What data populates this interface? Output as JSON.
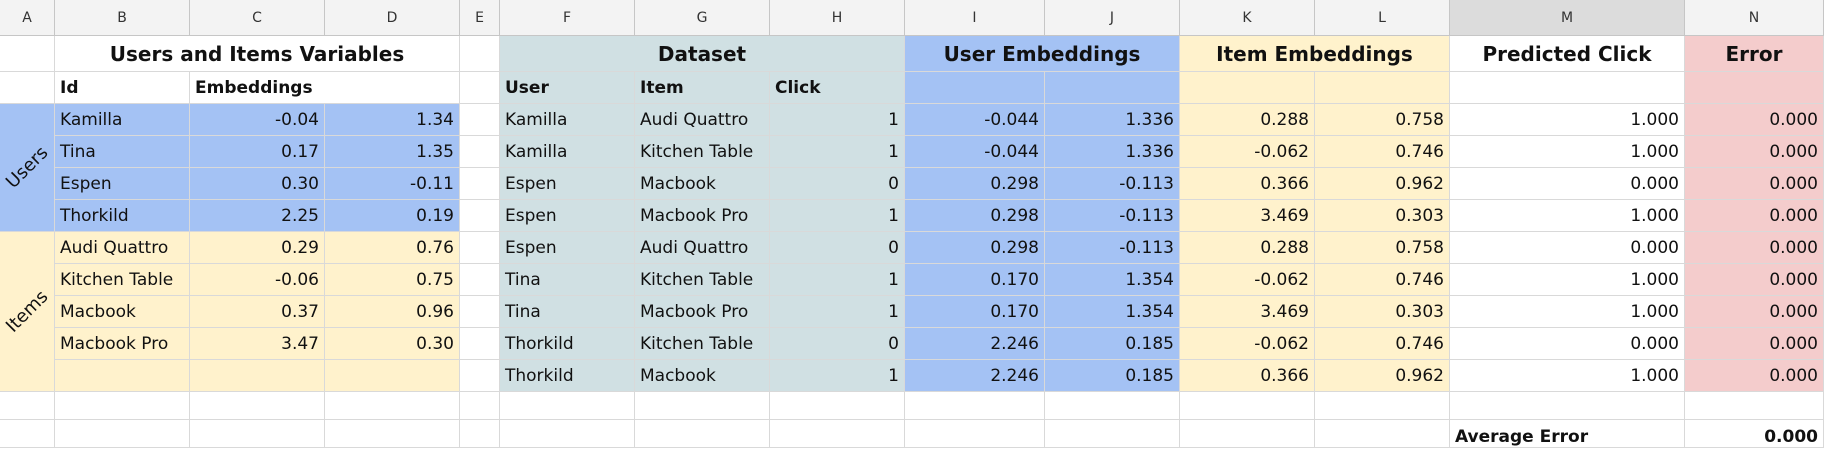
{
  "column_letters": [
    "A",
    "B",
    "C",
    "D",
    "E",
    "F",
    "G",
    "H",
    "I",
    "J",
    "K",
    "L",
    "M",
    "N"
  ],
  "selected_column": "M",
  "titles": {
    "users_items": "Users and Items Variables",
    "dataset": "Dataset",
    "user_embeddings": "User Embeddings",
    "item_embeddings": "Item Embeddings",
    "predicted_click": "Predicted Click",
    "error": "Error"
  },
  "headers": {
    "id": "Id",
    "embeddings": "Embeddings",
    "user": "User",
    "item": "Item",
    "click": "Click"
  },
  "group_labels": {
    "users": "Users",
    "items": "Items"
  },
  "variables": [
    [
      "Kamilla",
      "-0.04",
      "1.34"
    ],
    [
      "Tina",
      "0.17",
      "1.35"
    ],
    [
      "Espen",
      "0.30",
      "-0.11"
    ],
    [
      "Thorkild",
      "2.25",
      "0.19"
    ],
    [
      "Audi Quattro",
      "0.29",
      "0.76"
    ],
    [
      "Kitchen Table",
      "-0.06",
      "0.75"
    ],
    [
      "Macbook",
      "0.37",
      "0.96"
    ],
    [
      "Macbook Pro",
      "3.47",
      "0.30"
    ]
  ],
  "dataset": [
    [
      "Kamilla",
      "Audi Quattro",
      "1",
      "-0.044",
      "1.336",
      "0.288",
      "0.758",
      "1.000",
      "0.000"
    ],
    [
      "Kamilla",
      "Kitchen Table",
      "1",
      "-0.044",
      "1.336",
      "-0.062",
      "0.746",
      "1.000",
      "0.000"
    ],
    [
      "Espen",
      "Macbook",
      "0",
      "0.298",
      "-0.113",
      "0.366",
      "0.962",
      "0.000",
      "0.000"
    ],
    [
      "Espen",
      "Macbook Pro",
      "1",
      "0.298",
      "-0.113",
      "3.469",
      "0.303",
      "1.000",
      "0.000"
    ],
    [
      "Espen",
      "Audi Quattro",
      "0",
      "0.298",
      "-0.113",
      "0.288",
      "0.758",
      "0.000",
      "0.000"
    ],
    [
      "Tina",
      "Kitchen Table",
      "1",
      "0.170",
      "1.354",
      "-0.062",
      "0.746",
      "1.000",
      "0.000"
    ],
    [
      "Tina",
      "Macbook Pro",
      "1",
      "0.170",
      "1.354",
      "3.469",
      "0.303",
      "1.000",
      "0.000"
    ],
    [
      "Thorkild",
      "Kitchen Table",
      "0",
      "2.246",
      "0.185",
      "-0.062",
      "0.746",
      "0.000",
      "0.000"
    ],
    [
      "Thorkild",
      "Macbook",
      "1",
      "2.246",
      "0.185",
      "0.366",
      "0.962",
      "1.000",
      "0.000"
    ]
  ],
  "average_error": {
    "label": "Average Error",
    "value": "0.000"
  },
  "colors": {
    "user_blue": "#a4c2f4",
    "item_yellow": "#fff2cc",
    "dataset_teal": "#d0e0e3",
    "error_pink": "#f4cccc"
  }
}
